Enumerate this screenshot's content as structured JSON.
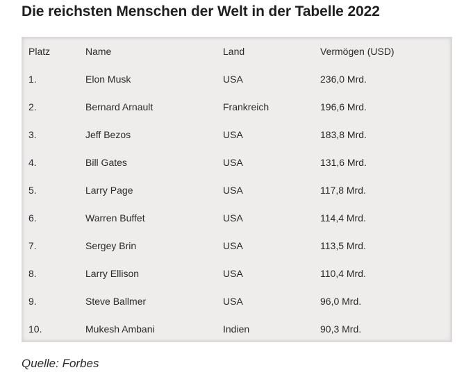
{
  "title": "Die reichsten Menschen der Welt in der Tabelle 2022",
  "table": {
    "headers": [
      "Platz",
      "Name",
      "Land",
      "Vermögen (USD)"
    ],
    "rows": [
      [
        "1.",
        "Elon Musk",
        "USA",
        "236,0 Mrd."
      ],
      [
        "2.",
        "Bernard Arnault",
        "Frankreich",
        "196,6 Mrd."
      ],
      [
        "3.",
        "Jeff Bezos",
        "USA",
        "183,8 Mrd."
      ],
      [
        "4.",
        "Bill Gates",
        "USA",
        "131,6 Mrd."
      ],
      [
        "5.",
        "Larry Page",
        "USA",
        "117,8 Mrd."
      ],
      [
        "6.",
        "Warren Buffet",
        "USA",
        "114,4 Mrd."
      ],
      [
        "7.",
        "Sergey Brin",
        "USA",
        "113,5 Mrd."
      ],
      [
        "8.",
        "Larry Ellison",
        "USA",
        "110,4 Mrd."
      ],
      [
        "9.",
        "Steve Ballmer",
        "USA",
        "96,0 Mrd."
      ],
      [
        "10.",
        "Mukesh Ambani",
        "Indien",
        "90,3 Mrd."
      ]
    ]
  },
  "source": "Quelle: Forbes"
}
